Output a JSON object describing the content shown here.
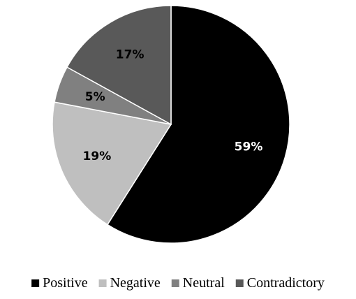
{
  "chart_data": {
    "type": "pie",
    "title": "",
    "slices": [
      {
        "label": "Positive",
        "value": 59,
        "display": "59%",
        "color": "#000000",
        "text_color": "#ffffff"
      },
      {
        "label": "Negative",
        "value": 19,
        "display": "19%",
        "color": "#bfbfbf",
        "text_color": "#000000"
      },
      {
        "label": "Neutral",
        "value": 5,
        "display": "5%",
        "color": "#808080",
        "text_color": "#000000"
      },
      {
        "label": "Contradictory",
        "value": 17,
        "display": "17%",
        "color": "#595959",
        "text_color": "#000000"
      }
    ],
    "start": "12 o'clock",
    "direction": "clockwise",
    "legend_position": "bottom"
  }
}
